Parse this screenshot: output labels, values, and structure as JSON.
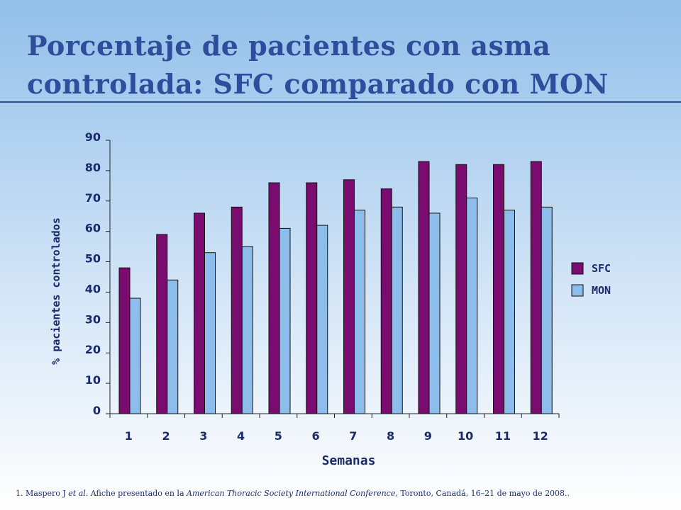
{
  "slide": {
    "title_line1": "Porcentaje de pacientes con asma",
    "title_line2": "controlada: SFC comparado con MON"
  },
  "colors": {
    "sfc": "#7a0c6f",
    "mon": "#8dbdea",
    "text": "#1b2b6b",
    "title": "#2e4d9a"
  },
  "chart_data": {
    "type": "bar",
    "categories": [
      "1",
      "2",
      "3",
      "4",
      "5",
      "6",
      "7",
      "8",
      "9",
      "10",
      "11",
      "12"
    ],
    "series": [
      {
        "name": "SFC",
        "values": [
          48,
          59,
          66,
          68,
          76,
          76,
          77,
          74,
          83,
          82,
          82,
          83
        ]
      },
      {
        "name": "MON",
        "values": [
          38,
          44,
          53,
          55,
          61,
          62,
          67,
          68,
          66,
          71,
          67,
          68
        ]
      }
    ],
    "xlabel": "Semanas",
    "ylabel": "% pacientes controlados",
    "ylim": [
      0,
      90
    ],
    "yticks": [
      0,
      10,
      20,
      30,
      40,
      50,
      60,
      70,
      80,
      90
    ],
    "grid": false,
    "legend": "right"
  },
  "footnote": {
    "part1": "1. Maspero J ",
    "part2": "et al",
    "part3": ". Afiche presentado en la ",
    "part4": "American Thoracic Society International Conference",
    "part5": ", Toronto, Canadá, 16–21 de mayo de 2008.."
  }
}
